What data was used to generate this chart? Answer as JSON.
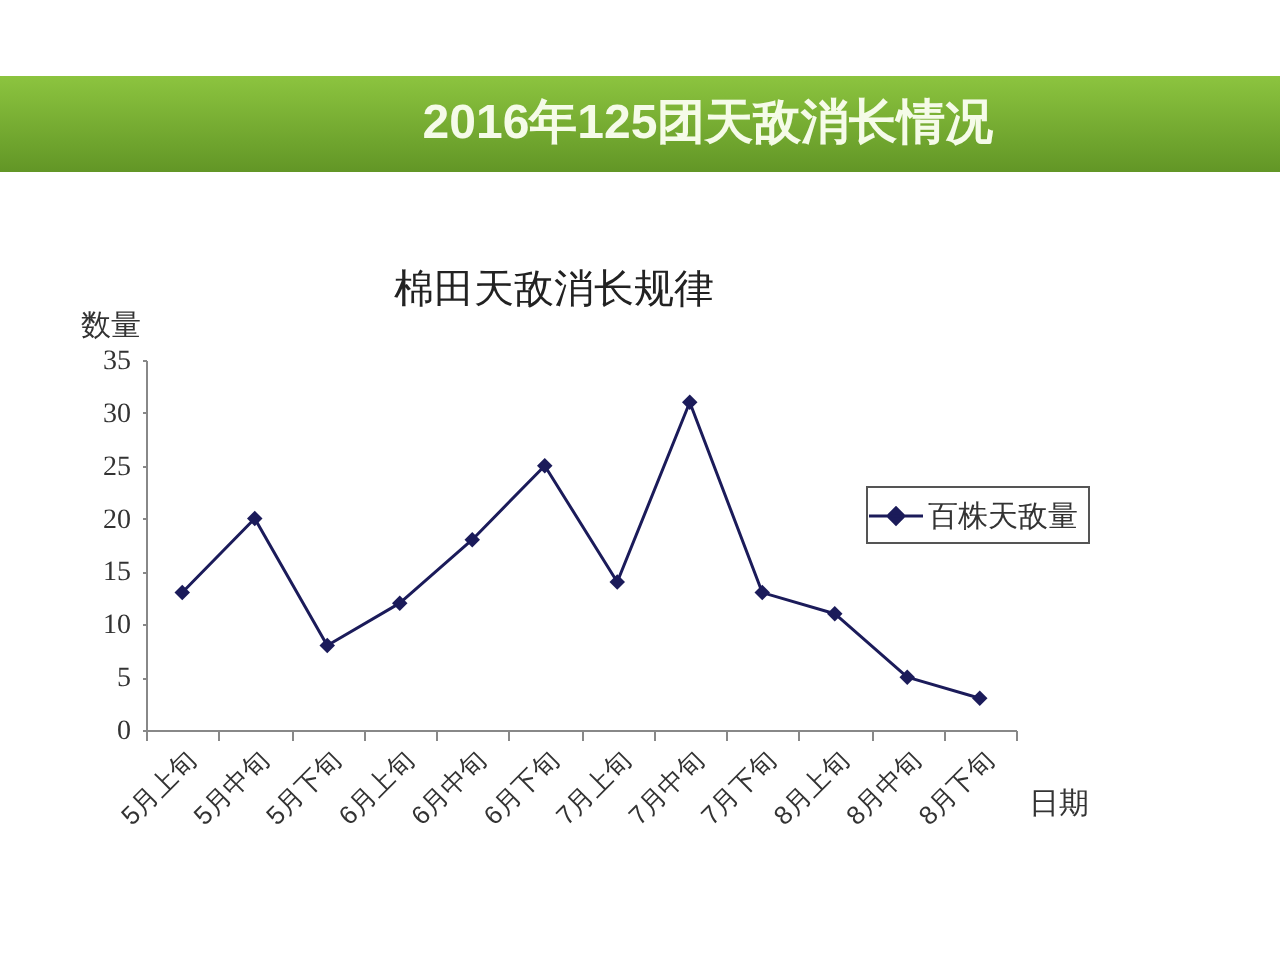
{
  "chart_data": {
    "type": "line",
    "title": "2016年125团天敌消长情况",
    "subtitle": "棉田天敌消长规律",
    "xlabel": "日期",
    "ylabel": "数量",
    "categories": [
      "5月上旬",
      "5月中旬",
      "5月下旬",
      "6月上旬",
      "6月中旬",
      "6月下旬",
      "7月上旬",
      "7月中旬",
      "7月下旬",
      "8月上旬",
      "8月中旬",
      "8月下旬"
    ],
    "series": [
      {
        "name": "百株天敌量",
        "color": "#1b1b5a",
        "values": [
          13,
          20,
          8,
          12,
          18,
          25,
          14,
          31,
          13,
          11,
          5,
          3
        ]
      }
    ],
    "ylim": [
      0,
      35
    ],
    "yticks": [
      0,
      5,
      10,
      15,
      20,
      25,
      30,
      35
    ],
    "grid": false,
    "legend": "right",
    "marker": "diamond",
    "line_style": "solid"
  }
}
